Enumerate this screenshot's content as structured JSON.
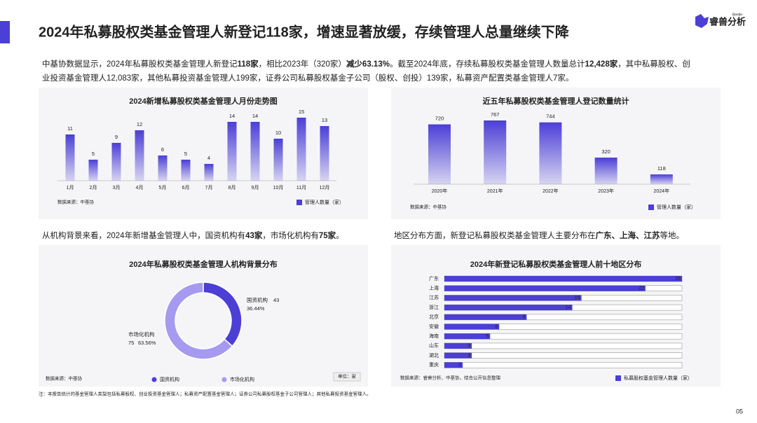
{
  "header": {
    "title": "2024年私募股权类基金管理人新登记118家，增速显著放缓，存续管理人总量继续下降",
    "brand": "睿兽分析",
    "brand_sub": "Beetle"
  },
  "intro_lines": [
    [
      {
        "text": "中基协数据显示，2024年私募股权类基金管理人新登记",
        "bold": false
      },
      {
        "text": "118家",
        "bold": true
      },
      {
        "text": "，相比2023年（320家）",
        "bold": false
      },
      {
        "text": "减少63.13%",
        "bold": true
      },
      {
        "text": "。截至2024年底，存续私募股权类基金管理人数量总计",
        "bold": false
      },
      {
        "text": "12,428家",
        "bold": true
      },
      {
        "text": "，其中私募股权、创",
        "bold": false
      }
    ],
    [
      {
        "text": "业投资基金管理人12,083家，其他私募投资基金管理人199家，证券公司私募股权基金子公司（股权、创投）139家，私募资产配置类基金管理人7家。",
        "bold": false
      }
    ]
  ],
  "section_texts": [
    [
      {
        "text": "从机构背景来看，2024年新增基金管理人中，国资机构有",
        "bold": false
      },
      {
        "text": "43家",
        "bold": true
      },
      {
        "text": "，市场化机构有",
        "bold": false
      },
      {
        "text": "75家",
        "bold": true
      },
      {
        "text": "。",
        "bold": false
      }
    ],
    [
      {
        "text": "地区分布方面，新登记私募股权类基金管理人主要分布在",
        "bold": false
      },
      {
        "text": "广东、上海、江苏",
        "bold": true
      },
      {
        "text": "等地。",
        "bold": false
      }
    ]
  ],
  "chart_data": [
    {
      "type": "bar",
      "title": "2024新增私募股权类基金管理人月份走势图",
      "categories": [
        "1月",
        "2月",
        "3月",
        "4月",
        "5月",
        "6月",
        "7月",
        "8月",
        "9月",
        "10月",
        "11月",
        "12月"
      ],
      "series": [
        {
          "name": "管理人数量（家）",
          "color": "#4b3fd6",
          "values": [
            11,
            5,
            9,
            12,
            6,
            5,
            4,
            14,
            14,
            10,
            15,
            13
          ]
        }
      ],
      "source": "数据来源：中基协"
    },
    {
      "type": "bar",
      "title": "近五年私募股权类基金管理人登记数量统计",
      "categories": [
        "2020年",
        "2021年",
        "2022年",
        "2023年",
        "2024年"
      ],
      "series": [
        {
          "name": "管理人数量（家）",
          "color": "#4b3fd6",
          "values": [
            720,
            767,
            744,
            320,
            118
          ]
        }
      ],
      "source": "数据来源：中基协"
    },
    {
      "type": "donut",
      "title": "2024年私募股权类基金管理人机构背景分布",
      "categories": [
        "国资机构",
        "市场化机构"
      ],
      "values": [
        43,
        75
      ],
      "colors": [
        "#4b3fd6",
        "#a59af0"
      ],
      "shares": [
        {
          "value": 36.44,
          "label": "36.44%"
        },
        {
          "value": 63.56,
          "label": "63.56%"
        }
      ],
      "unit": "单位：家",
      "source": "数据来源：中基协"
    },
    {
      "type": "hbar",
      "title": "2024年新登记私募股权类基金管理人前十地区分布",
      "categories": [
        "广东",
        "上海",
        "江苏",
        "浙江",
        "北京",
        "安徽",
        "海南",
        "山东",
        "湖北",
        "重庆"
      ],
      "series": [
        {
          "name": "私募股权基金管理人数量（家）",
          "color": "#4b3fd6",
          "values": [
            26,
            22,
            15,
            14,
            9,
            6,
            5,
            3,
            3,
            2
          ]
        }
      ],
      "source": "数据来源：睿兽分析、中基协，结合公开信息整理"
    }
  ],
  "footnote": "注：本报告统计的基金管理人类型包括私募股权、创业投资基金管理人；私募资产配置基金管理人；证券公司私募股权基金子公司管理人；其他私募投资基金管理人。",
  "page_number": "05"
}
